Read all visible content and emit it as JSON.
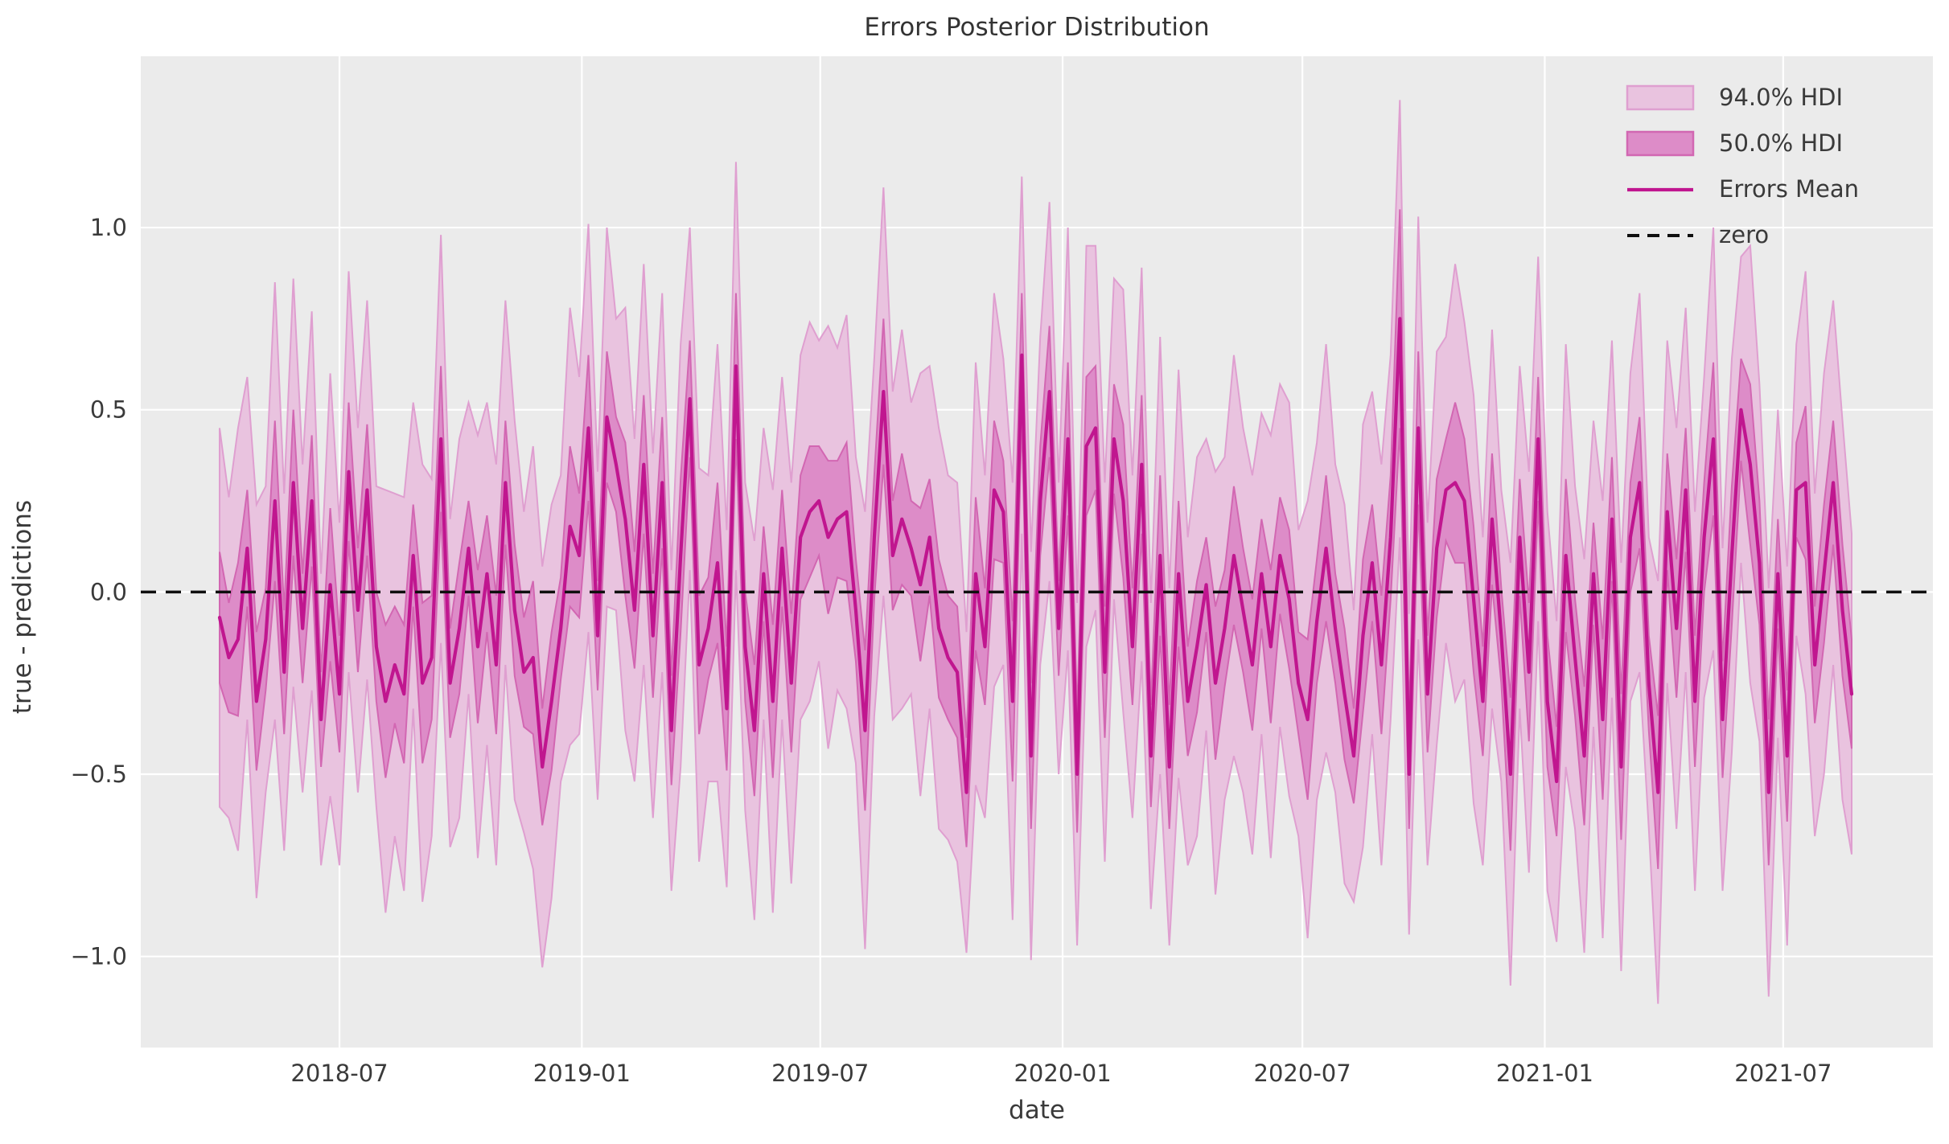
{
  "figure": {
    "title": "Errors Posterior Distribution",
    "xlabel": "date",
    "ylabel": "true - predictions"
  },
  "legend": {
    "items": [
      {
        "label": "94.0% HDI",
        "type": "band"
      },
      {
        "label": "50.0% HDI",
        "type": "band"
      },
      {
        "label": "Errors Mean",
        "type": "line"
      },
      {
        "label": "zero",
        "type": "dashed-line"
      }
    ]
  },
  "chart_data": {
    "type": "line",
    "title": "Errors Posterior Distribution",
    "xlabel": "date",
    "ylabel": "true - predictions",
    "grid": true,
    "legend_position": "upper right",
    "x_start_date": "2018-04-01",
    "x_freq_days": 7,
    "n_points": 178,
    "x_tick_labels": [
      "2018-07",
      "2019-01",
      "2019-07",
      "2020-01",
      "2020-07",
      "2021-01",
      "2021-07"
    ],
    "y_ticks": [
      -1.0,
      -0.5,
      0.0,
      0.5,
      1.0
    ],
    "y_tick_labels": [
      "−1.0",
      "−0.5",
      "0.0",
      "0.5",
      "1.0"
    ],
    "ylim": [
      -1.25,
      1.47
    ],
    "zero_line": 0,
    "colors": {
      "figure_background": "#ffffff",
      "plot_background": "#ebebeb",
      "gridline": "#ffffff",
      "hdi94_fill": "#e9c3df",
      "hdi94_edge": "#df9fd0",
      "hdi50_fill": "#dd8cc8",
      "hdi50_edge": "#d267b2",
      "mean_line": "#c0168f",
      "zero_line": "#0f0f0f",
      "text": "#3a3a3a",
      "title_text": "#333333"
    },
    "series": [
      {
        "name": "Errors Mean",
        "values": [
          -0.07,
          -0.18,
          -0.13,
          0.12,
          -0.3,
          -0.13,
          0.25,
          -0.22,
          0.3,
          -0.1,
          0.25,
          -0.35,
          0.02,
          -0.28,
          0.33,
          -0.05,
          0.28,
          -0.15,
          -0.3,
          -0.2,
          -0.28,
          0.1,
          -0.25,
          -0.18,
          0.42,
          -0.25,
          -0.1,
          0.12,
          -0.15,
          0.05,
          -0.2,
          0.3,
          -0.05,
          -0.22,
          -0.18,
          -0.48,
          -0.3,
          -0.1,
          0.18,
          0.1,
          0.45,
          -0.12,
          0.48,
          0.35,
          0.2,
          -0.05,
          0.35,
          -0.12,
          0.3,
          -0.38,
          0.1,
          0.53,
          -0.2,
          -0.1,
          0.08,
          -0.32,
          0.62,
          -0.15,
          -0.38,
          0.05,
          -0.3,
          0.12,
          -0.25,
          0.15,
          0.22,
          0.25,
          0.15,
          0.2,
          0.22,
          -0.05,
          -0.38,
          0.15,
          0.55,
          0.1,
          0.2,
          0.12,
          0.02,
          0.15,
          -0.1,
          -0.18,
          -0.22,
          -0.55,
          0.05,
          -0.15,
          0.28,
          0.22,
          -0.3,
          0.65,
          -0.45,
          0.25,
          0.55,
          -0.1,
          0.42,
          -0.5,
          0.4,
          0.45,
          -0.22,
          0.42,
          0.25,
          -0.15,
          0.35,
          -0.45,
          0.1,
          -0.48,
          0.05,
          -0.3,
          -0.15,
          0.02,
          -0.25,
          -0.1,
          0.1,
          -0.05,
          -0.2,
          0.05,
          -0.15,
          0.1,
          -0.02,
          -0.25,
          -0.35,
          -0.08,
          0.12,
          -0.1,
          -0.28,
          -0.45,
          -0.12,
          0.08,
          -0.2,
          0.15,
          0.75,
          -0.5,
          0.45,
          -0.28,
          0.12,
          0.28,
          0.3,
          0.25,
          -0.02,
          -0.3,
          0.2,
          -0.12,
          -0.5,
          0.15,
          -0.22,
          0.42,
          -0.3,
          -0.52,
          0.1,
          -0.18,
          -0.45,
          0.05,
          -0.35,
          0.2,
          -0.48,
          0.15,
          0.3,
          -0.25,
          -0.55,
          0.22,
          -0.1,
          0.28,
          -0.3,
          0.15,
          0.42,
          -0.35,
          0.1,
          0.5,
          0.35,
          0.08,
          -0.55,
          0.05,
          -0.45,
          0.28,
          0.3,
          -0.2,
          0.05,
          0.3,
          -0.05,
          -0.28
        ]
      },
      {
        "name": "50% HDI half-width",
        "values": [
          0.18,
          0.15,
          0.21,
          0.16,
          0.19,
          0.14,
          0.22,
          0.17,
          0.2,
          0.15,
          0.18,
          0.13,
          0.21,
          0.16,
          0.19,
          0.17,
          0.18,
          0.15,
          0.21,
          0.16,
          0.19,
          0.14,
          0.22,
          0.17,
          0.2,
          0.15,
          0.18,
          0.13,
          0.21,
          0.16,
          0.19,
          0.17,
          0.18,
          0.15,
          0.21,
          0.16,
          0.19,
          0.14,
          0.22,
          0.17,
          0.2,
          0.15,
          0.18,
          0.13,
          0.21,
          0.16,
          0.19,
          0.17,
          0.18,
          0.15,
          0.21,
          0.16,
          0.19,
          0.14,
          0.22,
          0.17,
          0.2,
          0.15,
          0.18,
          0.13,
          0.21,
          0.16,
          0.19,
          0.17,
          0.18,
          0.15,
          0.21,
          0.16,
          0.19,
          0.14,
          0.22,
          0.17,
          0.2,
          0.15,
          0.18,
          0.13,
          0.21,
          0.16,
          0.19,
          0.17,
          0.18,
          0.15,
          0.21,
          0.16,
          0.19,
          0.14,
          0.22,
          0.17,
          0.2,
          0.15,
          0.18,
          0.13,
          0.21,
          0.16,
          0.19,
          0.17,
          0.18,
          0.15,
          0.21,
          0.16,
          0.19,
          0.14,
          0.22,
          0.17,
          0.2,
          0.15,
          0.18,
          0.13,
          0.21,
          0.16,
          0.19,
          0.17,
          0.18,
          0.15,
          0.21,
          0.16,
          0.19,
          0.14,
          0.22,
          0.17,
          0.2,
          0.15,
          0.18,
          0.13,
          0.21,
          0.16,
          0.19,
          0.17,
          0.3,
          0.15,
          0.21,
          0.16,
          0.19,
          0.14,
          0.22,
          0.17,
          0.2,
          0.15,
          0.18,
          0.13,
          0.21,
          0.16,
          0.19,
          0.17,
          0.18,
          0.15,
          0.21,
          0.16,
          0.19,
          0.14,
          0.22,
          0.17,
          0.2,
          0.15,
          0.18,
          0.13,
          0.21,
          0.16,
          0.19,
          0.17,
          0.18,
          0.15,
          0.21,
          0.16,
          0.19,
          0.14,
          0.22,
          0.17,
          0.2,
          0.15,
          0.18,
          0.13,
          0.21,
          0.16,
          0.19,
          0.17,
          0.18,
          0.15
        ]
      },
      {
        "name": "94% HDI half-width",
        "values": [
          0.52,
          0.44,
          0.58,
          0.47,
          0.54,
          0.42,
          0.6,
          0.49,
          0.56,
          0.45,
          0.52,
          0.4,
          0.58,
          0.47,
          0.55,
          0.5,
          0.52,
          0.44,
          0.58,
          0.47,
          0.54,
          0.42,
          0.6,
          0.49,
          0.56,
          0.45,
          0.52,
          0.4,
          0.58,
          0.47,
          0.55,
          0.5,
          0.52,
          0.44,
          0.58,
          0.55,
          0.54,
          0.42,
          0.6,
          0.49,
          0.56,
          0.45,
          0.52,
          0.4,
          0.58,
          0.47,
          0.55,
          0.5,
          0.52,
          0.44,
          0.58,
          0.47,
          0.54,
          0.42,
          0.6,
          0.49,
          0.56,
          0.45,
          0.52,
          0.4,
          0.58,
          0.47,
          0.55,
          0.5,
          0.52,
          0.44,
          0.58,
          0.47,
          0.54,
          0.42,
          0.6,
          0.49,
          0.56,
          0.45,
          0.52,
          0.4,
          0.58,
          0.47,
          0.55,
          0.5,
          0.52,
          0.44,
          0.58,
          0.47,
          0.54,
          0.42,
          0.6,
          0.49,
          0.56,
          0.45,
          0.52,
          0.4,
          0.58,
          0.47,
          0.55,
          0.5,
          0.52,
          0.44,
          0.58,
          0.47,
          0.54,
          0.42,
          0.6,
          0.49,
          0.56,
          0.45,
          0.52,
          0.4,
          0.58,
          0.47,
          0.55,
          0.5,
          0.52,
          0.44,
          0.58,
          0.47,
          0.54,
          0.42,
          0.6,
          0.49,
          0.56,
          0.45,
          0.52,
          0.4,
          0.58,
          0.47,
          0.55,
          0.5,
          0.6,
          0.44,
          0.58,
          0.47,
          0.54,
          0.42,
          0.6,
          0.49,
          0.56,
          0.45,
          0.52,
          0.4,
          0.58,
          0.47,
          0.55,
          0.5,
          0.52,
          0.44,
          0.58,
          0.47,
          0.54,
          0.42,
          0.6,
          0.49,
          0.56,
          0.45,
          0.52,
          0.4,
          0.58,
          0.47,
          0.55,
          0.5,
          0.52,
          0.44,
          0.58,
          0.47,
          0.54,
          0.42,
          0.6,
          0.49,
          0.56,
          0.45,
          0.52,
          0.4,
          0.58,
          0.47,
          0.55,
          0.5,
          0.52,
          0.44
        ]
      }
    ]
  }
}
